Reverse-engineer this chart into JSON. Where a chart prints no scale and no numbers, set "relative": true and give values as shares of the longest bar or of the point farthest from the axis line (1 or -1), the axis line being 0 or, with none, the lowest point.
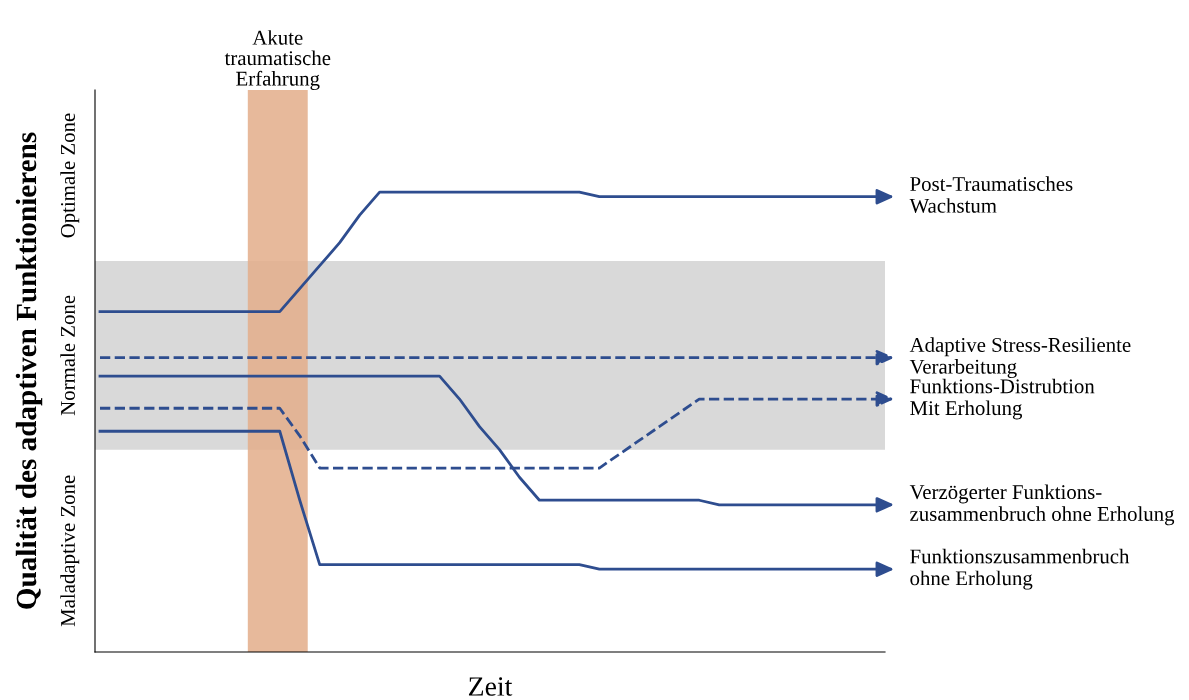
{
  "chart_data": {
    "type": "line",
    "relative": true,
    "xlabel": "Zeit",
    "ylabel": "Qualität des adaptiven Funktionierens",
    "legend": "right",
    "annotations": [
      "Akute\ntraumatische\nErfahrung",
      "Optimale Zone",
      "Maladaptive Zone"
    ],
    "categories": [
      null,
      null,
      null,
      null,
      null,
      null,
      null,
      null,
      null,
      null,
      null,
      null,
      null,
      null,
      null,
      null,
      null,
      null,
      null,
      null,
      null,
      null,
      null,
      null,
      null,
      null,
      null,
      null,
      null,
      null,
      null,
      null,
      null,
      null,
      null,
      null,
      null,
      null,
      null,
      null
    ],
    "series": [
      {
        "name": "Post-Traumatisches\nWachstum",
        "color": "#2e4d8f",
        "line_style": "solid",
        "values": [
          0.74,
          0.74,
          0.74,
          0.74,
          0.74,
          0.74,
          0.74,
          0.74,
          0.74,
          0.74,
          0.79,
          0.84,
          0.89,
          0.95,
          1.0,
          1.0,
          1.0,
          1.0,
          1.0,
          1.0,
          1.0,
          1.0,
          1.0,
          1.0,
          1.0,
          0.99,
          0.99,
          0.99,
          0.99,
          0.99,
          0.99,
          0.99,
          0.99,
          0.99,
          0.99,
          0.99,
          0.99,
          0.99,
          0.99,
          0.99
        ]
      },
      {
        "name": "Adaptive Stress-Resiliente\nVerarbeitung",
        "color": "#2e4d8f",
        "line_style": "dashed",
        "values": [
          0.64,
          0.64,
          0.64,
          0.64,
          0.64,
          0.64,
          0.64,
          0.64,
          0.64,
          0.64,
          0.64,
          0.64,
          0.64,
          0.64,
          0.64,
          0.64,
          0.64,
          0.64,
          0.64,
          0.64,
          0.64,
          0.64,
          0.64,
          0.64,
          0.64,
          0.64,
          0.64,
          0.64,
          0.64,
          0.64,
          0.64,
          0.64,
          0.64,
          0.64,
          0.64,
          0.64,
          0.64,
          0.64,
          0.64,
          0.64
        ]
      },
      {
        "name": "Funktions-Distrubtion\nMit Erholung",
        "color": "#2e4d8f",
        "line_style": "dashed",
        "values": [
          0.53,
          0.53,
          0.53,
          0.53,
          0.53,
          0.53,
          0.53,
          0.53,
          0.53,
          0.53,
          0.47,
          0.4,
          0.4,
          0.4,
          0.4,
          0.4,
          0.4,
          0.4,
          0.4,
          0.4,
          0.4,
          0.4,
          0.4,
          0.4,
          0.4,
          0.4,
          0.43,
          0.46,
          0.49,
          0.52,
          0.55,
          0.55,
          0.55,
          0.55,
          0.55,
          0.55,
          0.55,
          0.55,
          0.55,
          0.55
        ]
      },
      {
        "name": "Verzögerter Funktions-\nzusammenbruch ohne Erholung",
        "color": "#2e4d8f",
        "line_style": "solid",
        "values": [
          0.6,
          0.6,
          0.6,
          0.6,
          0.6,
          0.6,
          0.6,
          0.6,
          0.6,
          0.6,
          0.6,
          0.6,
          0.6,
          0.6,
          0.6,
          0.6,
          0.6,
          0.6,
          0.55,
          0.49,
          0.44,
          0.38,
          0.33,
          0.33,
          0.33,
          0.33,
          0.33,
          0.33,
          0.33,
          0.33,
          0.33,
          0.32,
          0.32,
          0.32,
          0.32,
          0.32,
          0.32,
          0.32,
          0.32,
          0.32
        ]
      },
      {
        "name": "Funktionszusammenbruch\nohne Erholung",
        "color": "#2e4d8f",
        "line_style": "solid",
        "values": [
          0.48,
          0.48,
          0.48,
          0.48,
          0.48,
          0.48,
          0.48,
          0.48,
          0.48,
          0.48,
          0.33,
          0.19,
          0.19,
          0.19,
          0.19,
          0.19,
          0.19,
          0.19,
          0.19,
          0.19,
          0.19,
          0.19,
          0.19,
          0.19,
          0.19,
          0.18,
          0.18,
          0.18,
          0.18,
          0.18,
          0.18,
          0.18,
          0.18,
          0.18,
          0.18,
          0.18,
          0.18,
          0.18,
          0.18,
          0.18
        ]
      }
    ],
    "bands": [
      {
        "axis": "y",
        "from": 0.44,
        "to": 0.85,
        "label": "Normale Zone",
        "color": "#d9d9d9"
      }
    ]
  }
}
